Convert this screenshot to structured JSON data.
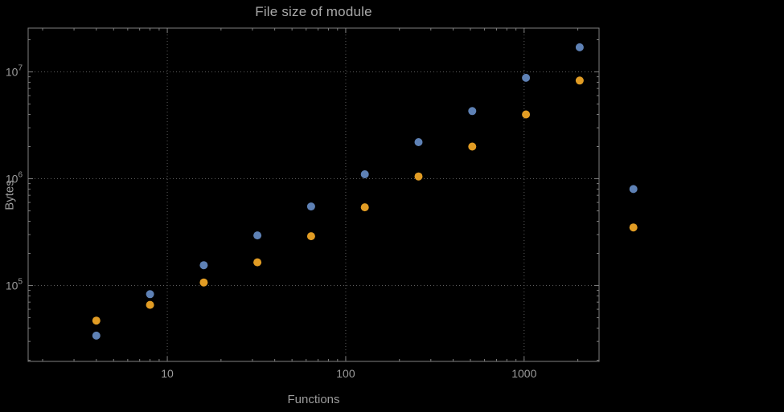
{
  "chart_data": {
    "type": "scatter",
    "title": "File size of module",
    "xlabel": "Functions",
    "ylabel": "Bytes",
    "x_scale": "log",
    "y_scale": "log",
    "grid": "dotted major gridlines on both axes",
    "legend": "none",
    "frame": true,
    "x_ticks": [
      10,
      100,
      1000
    ],
    "y_tick_base": "10",
    "y_ticks_exponents": [
      5,
      6,
      7
    ],
    "x_range_log10": [
      0.22,
      3.42
    ],
    "y_range_log10": [
      4.29,
      7.41
    ],
    "series": [
      {
        "name": "series-blue",
        "color": "#5e81b5",
        "x": [
          4,
          8,
          16,
          32,
          64,
          128,
          256,
          512,
          1024,
          2048,
          4096
        ],
        "y": [
          34000,
          83000,
          155000,
          295000,
          550000,
          1100000,
          2200000,
          4300000,
          8800000,
          17000000,
          800000
        ]
      },
      {
        "name": "series-orange",
        "color": "#e19c24",
        "x": [
          4,
          8,
          16,
          32,
          64,
          128,
          256,
          512,
          1024,
          2048,
          4096
        ],
        "y": [
          47000,
          66000,
          107000,
          165000,
          290000,
          540000,
          1050000,
          2000000,
          4000000,
          8300000,
          350000
        ]
      }
    ]
  },
  "colors": {
    "background": "#000000",
    "frame": "#7f7f7f",
    "grid": "#5d5d5d",
    "text": "#9b9b9b"
  }
}
